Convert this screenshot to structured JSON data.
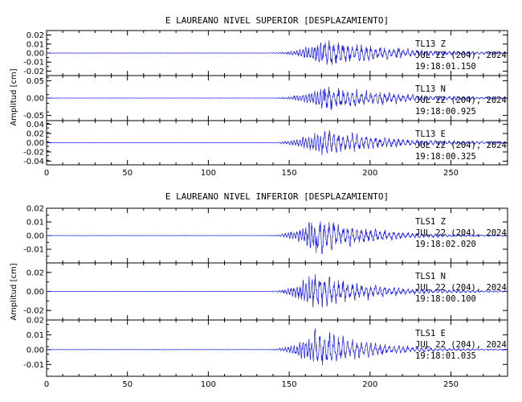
{
  "chart_data": [
    {
      "type": "line",
      "title": "E LAUREANO NIVEL SUPERIOR [DESPLAZAMIENTO]",
      "ylabel": "Amplitud [cm]",
      "xlim": [
        0,
        285
      ],
      "xticks": [
        "0",
        "50",
        "100",
        "150",
        "200",
        "250"
      ],
      "panels": [
        {
          "station": "TL13",
          "component": "Z",
          "date": "JUL 22 (204), 2024",
          "time": "19:18:01.150",
          "ylim": [
            -0.025,
            0.025
          ],
          "yticks": [
            "-0.02",
            "-0.01",
            "0.00",
            "0.01",
            "0.02"
          ],
          "envelope": {
            "onset": 135,
            "peak_time": 171,
            "peak_amp": 0.02,
            "decay": 40,
            "pre_noise": 0.0003
          }
        },
        {
          "station": "TL13",
          "component": "N",
          "date": "JUL 22 (204), 2024",
          "time": "19:18:00.925",
          "ylim": [
            -0.065,
            0.065
          ],
          "yticks": [
            "-0.05",
            "0.00",
            "0.05"
          ],
          "envelope": {
            "onset": 135,
            "peak_time": 172,
            "peak_amp": 0.05,
            "decay": 40,
            "pre_noise": 0.0006
          }
        },
        {
          "station": "TL13",
          "component": "E",
          "date": "JUL 22 (204), 2024",
          "time": "19:18:00.325",
          "ylim": [
            -0.048,
            0.048
          ],
          "yticks": [
            "-0.04",
            "-0.02",
            "0.00",
            "0.02",
            "0.04"
          ],
          "envelope": {
            "onset": 135,
            "peak_time": 170,
            "peak_amp": 0.04,
            "decay": 40,
            "pre_noise": 0.0005
          }
        }
      ]
    },
    {
      "type": "line",
      "title": "E LAUREANO NIVEL INFERIOR [DESPLAZAMIENTO]",
      "ylabel": "Amplitud [cm]",
      "xlim": [
        0,
        285
      ],
      "xticks": [
        "0",
        "50",
        "100",
        "150",
        "200",
        "250"
      ],
      "panels": [
        {
          "station": "TLS1",
          "component": "Z",
          "date": "JUL 22 (204), 2024",
          "time": "19:18:02.020",
          "ylim": [
            -0.02,
            0.02
          ],
          "yticks": [
            "-0.01",
            "0.00",
            "0.01",
            "0.02"
          ],
          "envelope": {
            "onset": 135,
            "peak_time": 167,
            "peak_amp": 0.018,
            "decay": 30,
            "pre_noise": 0.0002
          }
        },
        {
          "station": "TLS1",
          "component": "N",
          "date": "JUL 22 (204), 2024",
          "time": "19:18:00.100",
          "ylim": [
            -0.03,
            0.03
          ],
          "yticks": [
            "-0.02",
            "0.00",
            "0.02"
          ],
          "envelope": {
            "onset": 135,
            "peak_time": 165,
            "peak_amp": 0.025,
            "decay": 32,
            "pre_noise": 0.0003
          }
        },
        {
          "station": "TLS1",
          "component": "E",
          "date": "JUL 22 (204), 2024",
          "time": "19:18:01.035",
          "ylim": [
            -0.018,
            0.02
          ],
          "yticks": [
            "-0.01",
            "0.00",
            "0.01",
            "0.02"
          ],
          "envelope": {
            "onset": 135,
            "peak_time": 166,
            "peak_amp": 0.017,
            "decay": 30,
            "pre_noise": 0.0002
          }
        }
      ]
    }
  ],
  "colors": {
    "trace": "#1a1aff",
    "axis": "#000000",
    "background": "#ffffff"
  }
}
